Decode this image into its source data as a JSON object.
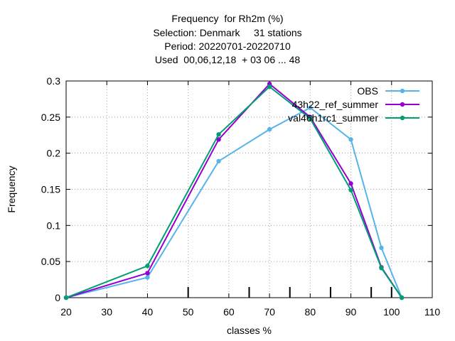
{
  "chart_data": {
    "type": "line",
    "title_lines": [
      "Frequency  for Rh2m (%)",
      "Selection: Denmark     31 stations",
      "Period: 20220701-20220710",
      "Used  00,06,12,18  + 03 06 ... 48"
    ],
    "xlabel": "classes %",
    "ylabel": "Frequency",
    "xlim": [
      20,
      110
    ],
    "ylim": [
      0,
      0.3
    ],
    "xticks": [
      20,
      30,
      40,
      50,
      60,
      70,
      80,
      90,
      100,
      110
    ],
    "xtick_labels": [
      "20",
      "30",
      "40",
      "50",
      "60",
      "70",
      "80",
      "90",
      "100",
      "110"
    ],
    "yticks": [
      0,
      0.05,
      0.1,
      0.15,
      0.2,
      0.25,
      0.3
    ],
    "ytick_labels": [
      "0",
      "0.05",
      "0.1",
      "0.15",
      "0.2",
      "0.25",
      "0.3"
    ],
    "grid": true,
    "legend_position": "top-right",
    "class_markers": [
      50,
      65,
      75,
      85,
      95,
      100
    ],
    "series": [
      {
        "name": "OBS",
        "color": "#56b4e9",
        "x": [
          20,
          40,
          57.5,
          70,
          80,
          90,
          97.5,
          102.5
        ],
        "y": [
          0,
          0.028,
          0.189,
          0.233,
          0.263,
          0.219,
          0.069,
          0
        ]
      },
      {
        "name": "43h22_ref_summer",
        "color": "#9400d3",
        "x": [
          20,
          40,
          57.5,
          70,
          80,
          90,
          97.5,
          102.5
        ],
        "y": [
          0,
          0.034,
          0.219,
          0.296,
          0.25,
          0.158,
          0.042,
          0
        ]
      },
      {
        "name": "val46h1rc1_summer",
        "color": "#009e73",
        "x": [
          20,
          40,
          57.5,
          70,
          80,
          90,
          97.5,
          102.5
        ],
        "y": [
          0,
          0.044,
          0.226,
          0.292,
          0.248,
          0.149,
          0.041,
          0
        ]
      }
    ]
  }
}
